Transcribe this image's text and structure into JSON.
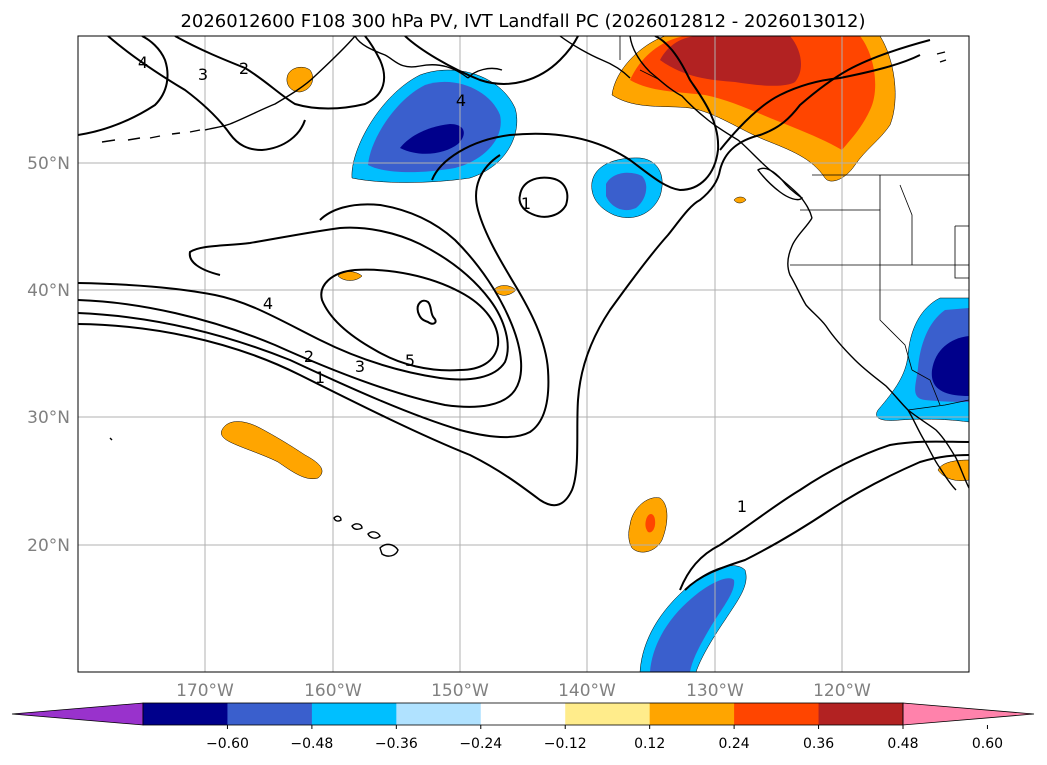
{
  "title": "2026012600 F108 300 hPa PV, IVT Landfall PC (2026012812 - 2026013012)",
  "lat_labels": [
    "50°N",
    "40°N",
    "30°N",
    "20°N"
  ],
  "lon_labels": [
    "170°W",
    "160°W",
    "150°W",
    "140°W",
    "130°W",
    "120°W"
  ],
  "colorbar": {
    "ticks": [
      "−0.60",
      "−0.48",
      "−0.36",
      "−0.24",
      "−0.12",
      "0.12",
      "0.24",
      "0.36",
      "0.48",
      "0.60"
    ],
    "colors": [
      "#9932cc",
      "#00008b",
      "#3a5fcd",
      "#00bfff",
      "#b0e2ff",
      "#ffffff",
      "#ffec8b",
      "#ffa500",
      "#ff4500",
      "#b22222",
      "#ff82ab"
    ]
  },
  "contour_labels": [
    "4",
    "3",
    "2",
    "4",
    "1",
    "4",
    "2",
    "3",
    "5",
    "1",
    "1"
  ]
}
